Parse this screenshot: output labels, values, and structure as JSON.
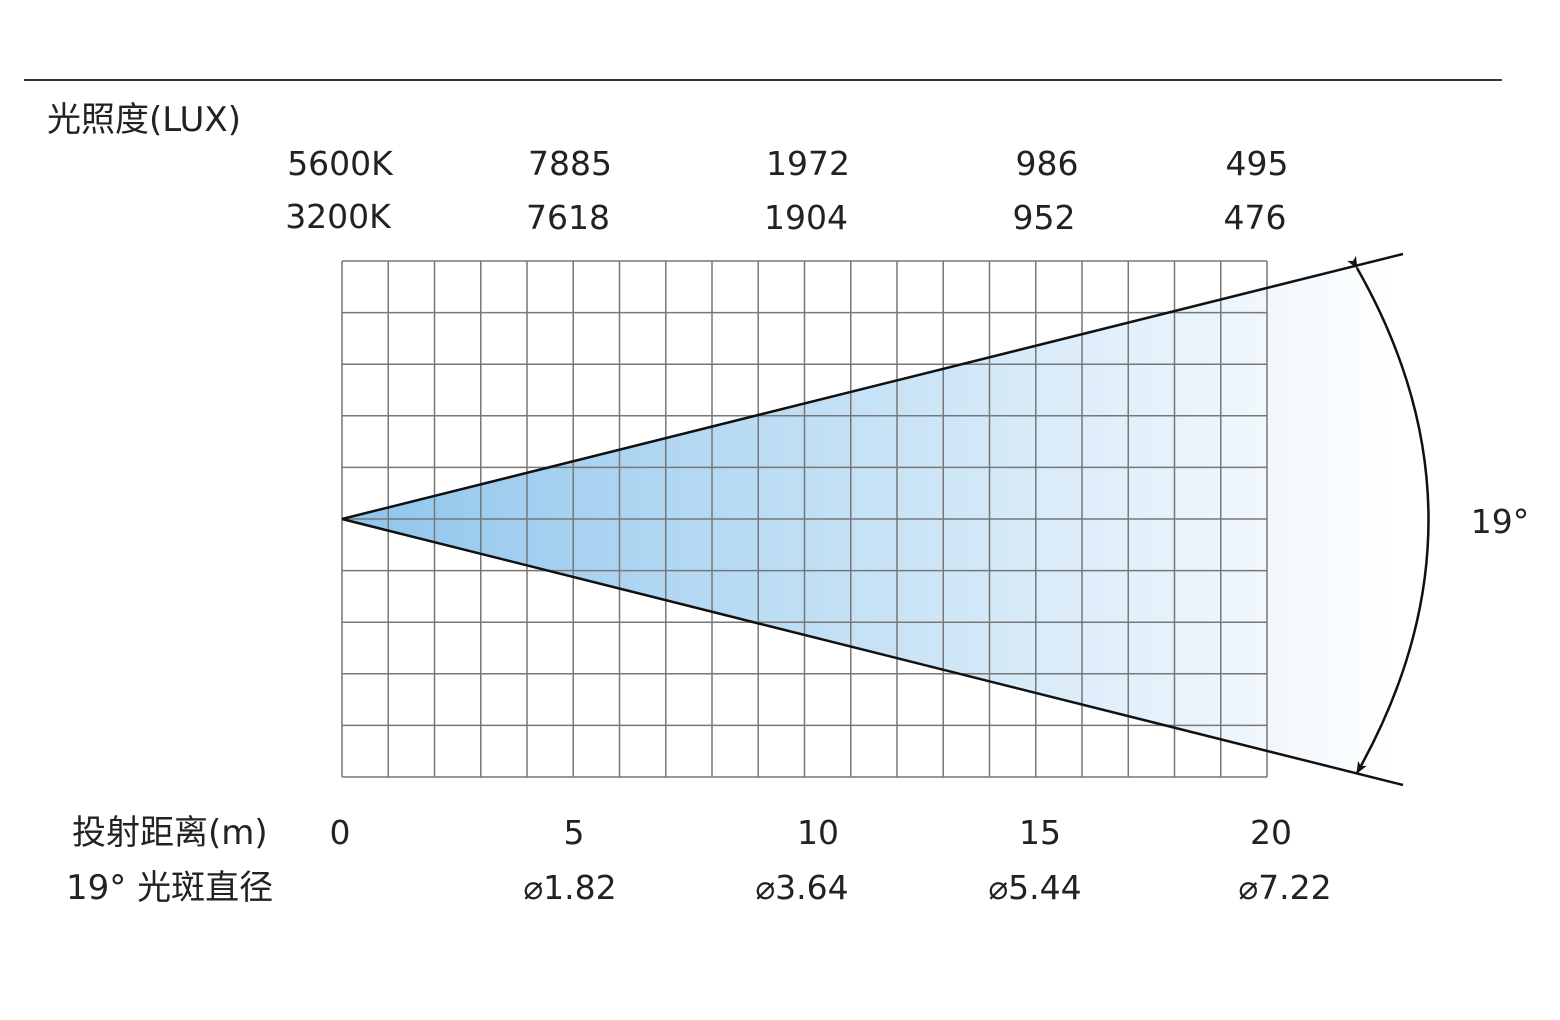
{
  "header": {
    "illuminance_label": "光照度(LUX)"
  },
  "temperatures": [
    {
      "name": "5600K",
      "values": [
        "7885",
        "1972",
        "986",
        "495"
      ]
    },
    {
      "name": "3200K",
      "values": [
        "7618",
        "1904",
        "952",
        "476"
      ]
    }
  ],
  "footer": {
    "distance_label": "投射距离(m)",
    "spot_label": "19° 光斑直径",
    "distances": [
      "0",
      "5",
      "10",
      "15",
      "20"
    ],
    "diameters": [
      "⌀1.82",
      "⌀3.64",
      "⌀5.44",
      "⌀7.22"
    ]
  },
  "beam": {
    "angle_label": "19°",
    "angle_deg": 19,
    "max_distance_m": 20,
    "gradient_start": "#8ec5ec",
    "gradient_end": "#ffffff"
  },
  "colors": {
    "grid": "#777777",
    "line": "#111111",
    "text": "#222222"
  }
}
